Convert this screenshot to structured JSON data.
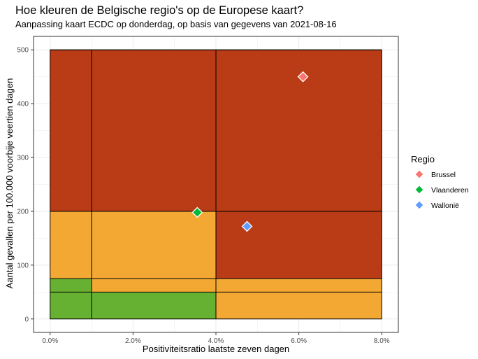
{
  "chart_data": {
    "type": "scatter",
    "title": "Hoe kleuren de Belgische regio's op de Europese kaart?",
    "subtitle": "Aanpassing kaart ECDC op donderdag, op basis van gegevens van 2021-08-16",
    "xlabel": "Positiviteitsratio laatste zeven dagen",
    "ylabel": "Aantal gevallen per 100.000 voorbije veertien dagen",
    "xlim": [
      0,
      0.08
    ],
    "ylim": [
      0,
      500
    ],
    "x_ticks": [
      0,
      0.02,
      0.04,
      0.06,
      0.08
    ],
    "x_tick_labels": [
      "0.0%",
      "2.0%",
      "4.0%",
      "6.0%",
      "8.0%"
    ],
    "y_ticks": [
      0,
      100,
      200,
      300,
      400,
      500
    ],
    "y_tick_labels": [
      "0",
      "100",
      "200",
      "300",
      "400",
      "500"
    ],
    "grid": true,
    "legend": {
      "title": "Regio",
      "position": "right",
      "entries": [
        "Brussel",
        "Vlaanderen",
        "Wallonië"
      ]
    },
    "series": [
      {
        "name": "Brussel",
        "color": "#F8766D",
        "x": [
          0.061
        ],
        "y": [
          450
        ]
      },
      {
        "name": "Vlaanderen",
        "color": "#00BA38",
        "x": [
          0.0355
        ],
        "y": [
          198
        ]
      },
      {
        "name": "Wallonië",
        "color": "#619CFF",
        "x": [
          0.0475
        ],
        "y": [
          172
        ]
      }
    ],
    "zones": [
      {
        "x": [
          0,
          0.01
        ],
        "y": [
          0,
          75
        ],
        "color": "#66b032"
      },
      {
        "x": [
          0.01,
          0.04
        ],
        "y": [
          0,
          50
        ],
        "color": "#66b032"
      },
      {
        "x": [
          0.01,
          0.04
        ],
        "y": [
          50,
          75
        ],
        "color": "#f2a833"
      },
      {
        "x": [
          0.04,
          0.08
        ],
        "y": [
          0,
          75
        ],
        "color": "#f2a833"
      },
      {
        "x": [
          0,
          0.04
        ],
        "y": [
          75,
          200
        ],
        "color": "#f2a833"
      },
      {
        "x": [
          0.04,
          0.08
        ],
        "y": [
          75,
          200
        ],
        "color": "#b93c16"
      },
      {
        "x": [
          0,
          0.08
        ],
        "y": [
          200,
          500
        ],
        "color": "#b93c16"
      }
    ],
    "zone_lines": {
      "vertical": [
        {
          "x": 0.01,
          "y": [
            0,
            500
          ]
        },
        {
          "x": 0.04,
          "y": [
            0,
            500
          ]
        }
      ],
      "horizontal": [
        {
          "y": 50,
          "x": [
            0,
            0.08
          ]
        },
        {
          "y": 75,
          "x": [
            0,
            0.08
          ]
        },
        {
          "y": 200,
          "x": [
            0,
            0.08
          ]
        },
        {
          "y": 500,
          "x": [
            0,
            0.08
          ]
        }
      ]
    },
    "colors": {
      "green": "#66b032",
      "orange": "#f2a833",
      "red": "#b93c16",
      "grid": "#ebebeb",
      "panel_border": "#333333"
    }
  }
}
